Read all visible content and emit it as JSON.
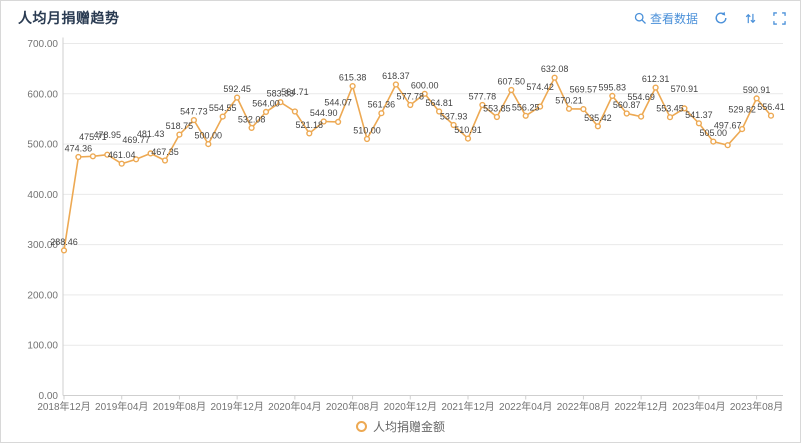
{
  "header": {
    "title": "人均月捐赠趋势",
    "toolbar": {
      "view_data_label": "查看数据",
      "accent_color": "#4a90d9"
    }
  },
  "chart_data": {
    "type": "line",
    "title": "人均月捐赠趋势",
    "series": [
      {
        "name": "人均捐赠金额",
        "values": [
          288.46,
          474.36,
          475.71,
          478.95,
          461.04,
          469.77,
          481.43,
          467.35,
          518.75,
          547.73,
          500.0,
          554.55,
          592.45,
          532.08,
          564.0,
          583.33,
          564.71,
          521.18,
          544.9,
          544.07,
          615.38,
          510.0,
          561.36,
          618.37,
          577.78,
          600.0,
          564.81,
          537.93,
          510.91,
          577.78,
          553.85,
          607.5,
          556.25,
          574.42,
          632.08,
          570.21,
          569.57,
          535.42,
          595.83,
          560.87,
          554.69,
          612.31,
          553.45,
          570.91,
          541.37,
          505.0,
          497.67,
          529.82,
          590.91,
          556.41
        ]
      }
    ],
    "x_tick_labels": [
      "2018年12月",
      "2019年04月",
      "2019年08月",
      "2019年12月",
      "2020年04月",
      "2020年08月",
      "2020年12月",
      "2021年12月",
      "2022年04月",
      "2022年08月",
      "2022年12月",
      "2023年04月",
      "2023年08月"
    ],
    "x_tick_every_n_points": 4,
    "y_ticks": [
      0,
      100,
      200,
      300,
      400,
      500,
      600,
      700
    ],
    "ylim": [
      0,
      700
    ],
    "grid": true,
    "legend": {
      "position": "bottom",
      "entries": [
        "人均捐赠金额"
      ]
    },
    "line_color": "#eda953",
    "marker_fill": "#ffffff",
    "data_label_color": "#444444",
    "axis_label_color": "#737373",
    "grid_color": "#e9e9e9",
    "axis_line_color": "#cfcfcf"
  }
}
